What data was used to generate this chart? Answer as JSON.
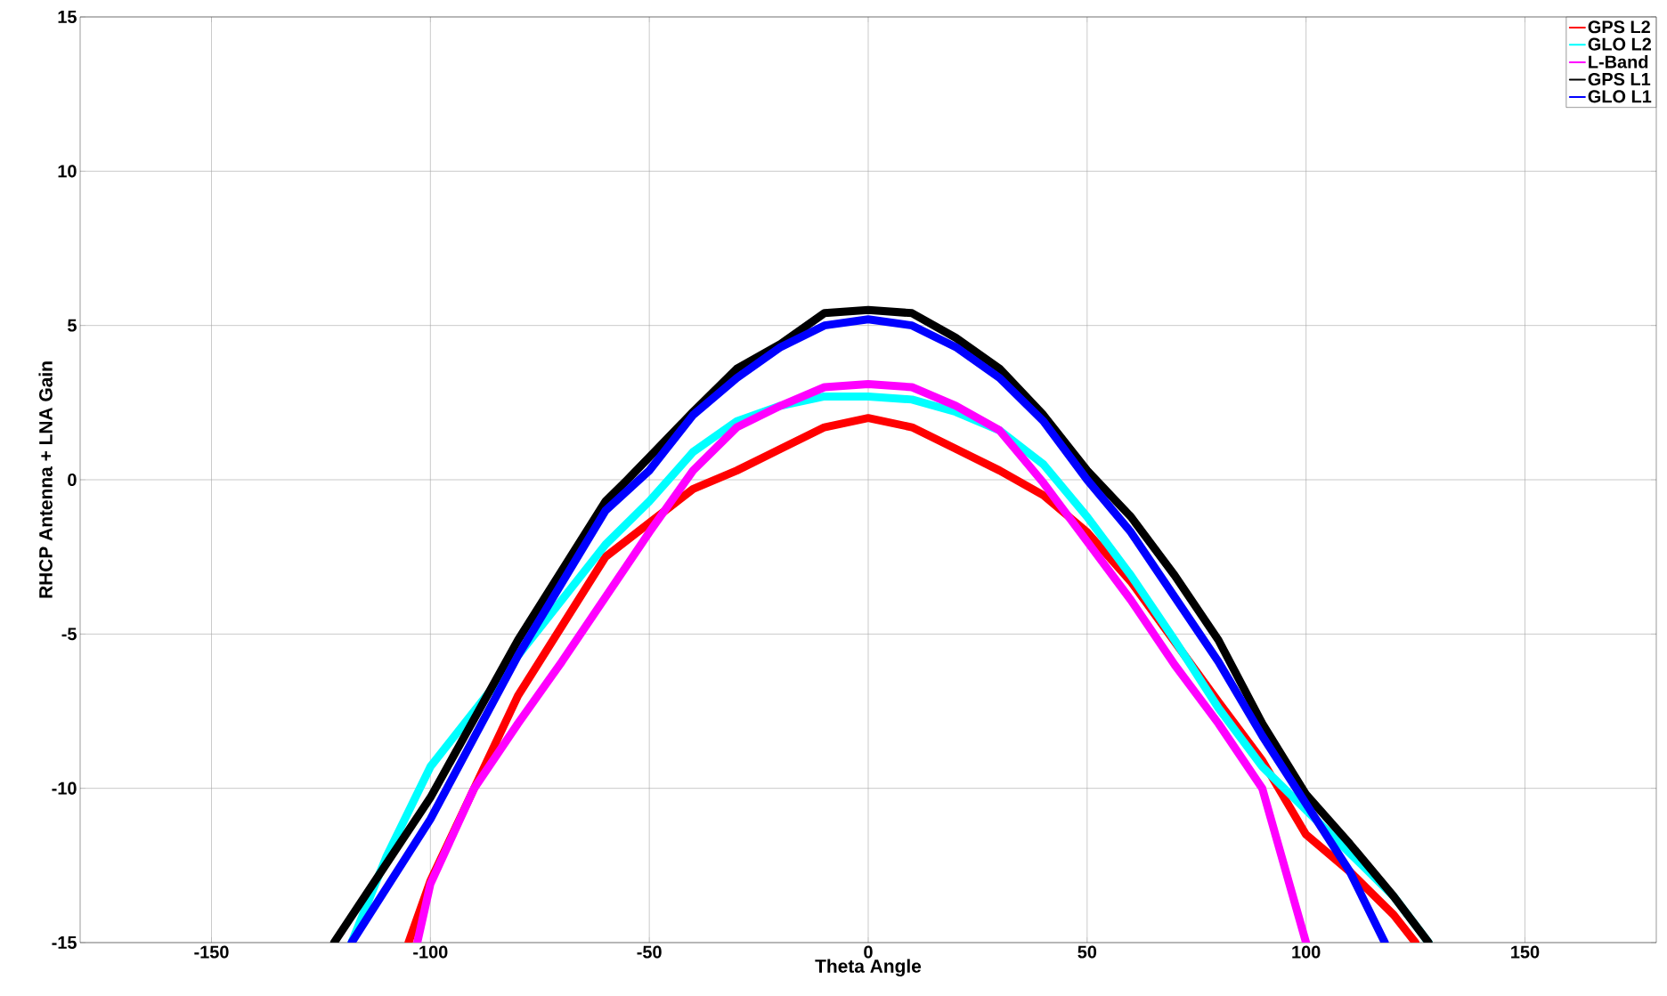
{
  "chart_data": {
    "type": "line",
    "xlabel": "Theta Angle",
    "ylabel": "RHCP Antenna + LNA Gain",
    "xlim": [
      -180,
      180
    ],
    "ylim": [
      -15,
      15
    ],
    "xticks": [
      -150,
      -100,
      -50,
      0,
      50,
      100,
      150
    ],
    "yticks": [
      -15,
      -10,
      -5,
      0,
      5,
      10,
      15
    ],
    "grid": true,
    "legend": "top right",
    "line_style": "solid",
    "marker": "none",
    "series": [
      {
        "name": "GPS L2",
        "color": "#ff0000",
        "x": [
          -105,
          -100,
          -80,
          -60,
          -40,
          -30,
          -20,
          -10,
          0,
          10,
          20,
          30,
          40,
          50,
          60,
          70,
          80,
          90,
          100,
          110,
          120,
          125
        ],
        "values": [
          -15,
          -13,
          -7,
          -2.5,
          -0.3,
          0.3,
          1.0,
          1.7,
          2.0,
          1.7,
          1.0,
          0.3,
          -0.5,
          -1.7,
          -3.3,
          null,
          -7.2,
          -9.1,
          -11.5,
          -12.7,
          -14.1,
          -15
        ]
      },
      {
        "name": "GLO L2",
        "color": "#00ffff",
        "x": [
          -118,
          -110,
          -100,
          -80,
          -60,
          -50,
          -40,
          -30,
          -20,
          -10,
          0,
          10,
          20,
          30,
          40,
          50,
          60,
          70,
          80,
          90,
          100,
          110,
          120,
          128
        ],
        "values": [
          -15,
          -12.2,
          -9.3,
          null,
          -2.1,
          -0.7,
          0.9,
          1.9,
          2.4,
          2.7,
          2.7,
          2.6,
          2.2,
          1.6,
          0.5,
          -1.2,
          -3.1,
          -5.2,
          -7.4,
          -9.3,
          -10.7,
          -12.1,
          -13.5,
          -15
        ]
      },
      {
        "name": "L-Band",
        "color": "#ff00ff",
        "x": [
          -103,
          -100,
          -90,
          -80,
          -70,
          -60,
          -50,
          -40,
          -30,
          -20,
          -10,
          0,
          10,
          20,
          30,
          40,
          50,
          60,
          70,
          80,
          90,
          100
        ],
        "values": [
          -15,
          -13.1,
          -10,
          -7.9,
          -5.9,
          -3.8,
          -1.7,
          0.3,
          1.7,
          2.4,
          3.0,
          3.1,
          3.0,
          2.4,
          1.6,
          -0.1,
          -2.0,
          -3.9,
          -6.0,
          -7.9,
          -10,
          -15
        ]
      },
      {
        "name": "GPS L1",
        "color": "#000000",
        "x": [
          -122,
          -100,
          -80,
          -60,
          -55,
          -40,
          -30,
          -20,
          -10,
          0,
          10,
          20,
          30,
          40,
          50,
          60,
          70,
          80,
          90,
          100,
          110,
          120,
          128
        ],
        "values": [
          -15,
          -10.3,
          -5.2,
          -0.7,
          0,
          2.2,
          3.6,
          4.4,
          5.4,
          5.5,
          5.4,
          4.6,
          3.6,
          2.1,
          0.3,
          -1.2,
          -3.1,
          -5.2,
          -7.9,
          -10.2,
          -11.8,
          -13.5,
          -15
        ]
      },
      {
        "name": "GLO L1",
        "color": "#0000ff",
        "x": [
          -118,
          -100,
          -80,
          -60,
          -50,
          -40,
          -30,
          -20,
          -10,
          0,
          10,
          20,
          30,
          40,
          50,
          60,
          70,
          80,
          90,
          100,
          110,
          118
        ],
        "values": [
          -15,
          -11,
          -5.7,
          -1.0,
          0.3,
          2.1,
          3.3,
          4.3,
          5.0,
          5.2,
          5.0,
          4.3,
          3.3,
          1.9,
          0,
          -1.7,
          -3.8,
          -5.9,
          -8.3,
          -10.5,
          -12.7,
          -15
        ]
      }
    ]
  }
}
